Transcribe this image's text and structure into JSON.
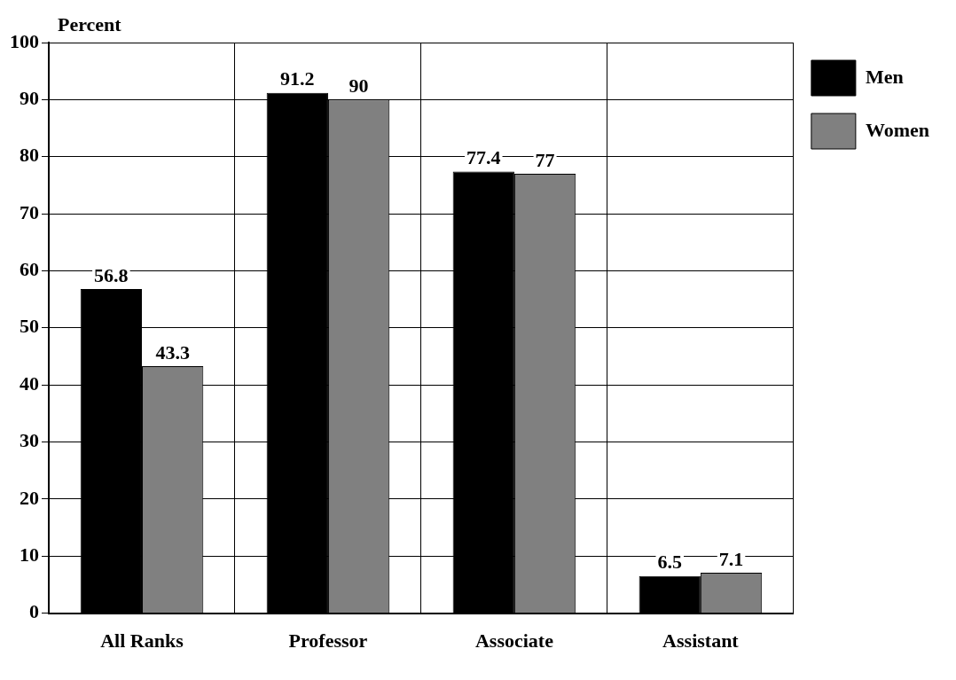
{
  "chart_data": {
    "type": "bar",
    "ylabel": "Percent",
    "categories": [
      "All Ranks",
      "Professor",
      "Associate",
      "Assistant"
    ],
    "series": [
      {
        "name": "Men",
        "color": "#000000",
        "values": [
          56.8,
          91.2,
          77.4,
          6.5
        ]
      },
      {
        "name": "Women",
        "color": "#808080",
        "values": [
          43.3,
          90,
          77,
          7.1
        ]
      }
    ],
    "ylim": [
      0,
      100
    ],
    "yticks": [
      0,
      10,
      20,
      30,
      40,
      50,
      60,
      70,
      80,
      90,
      100
    ],
    "grid": true,
    "legend": "top right",
    "data_labels": true
  }
}
